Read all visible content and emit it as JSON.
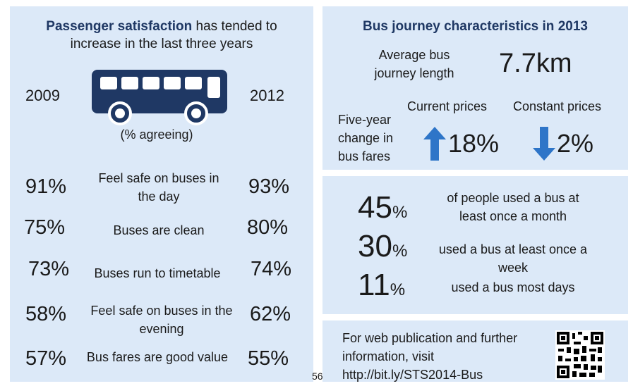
{
  "left": {
    "title_bold": "Passenger satisfaction",
    "title_rest": " has tended to",
    "title_line2": "increase in the last three years",
    "year_start": "2009",
    "year_end": "2012",
    "agreeing_note": "(% agreeing)",
    "rows": [
      {
        "label_line1": "Feel safe on buses in",
        "label_line2": "the day",
        "v2009": "91%",
        "v2012": "93%"
      },
      {
        "label_line1": "Buses are clean",
        "label_line2": "",
        "v2009": "75%",
        "v2012": "80%"
      },
      {
        "label_line1": "Buses run to timetable",
        "label_line2": "",
        "v2009": "73%",
        "v2012": "74%"
      },
      {
        "label_line1": "Feel safe on buses in the",
        "label_line2": "evening",
        "v2009": "58%",
        "v2012": "62%"
      },
      {
        "label_line1": "Bus fares are good value",
        "label_line2": "",
        "v2009": "57%",
        "v2012": "55%"
      }
    ]
  },
  "journey": {
    "title": "Bus  journey characteristics in 2013",
    "avg_label_line1": "Average bus",
    "avg_label_line2": "journey length",
    "avg_value": "7.7km",
    "fare_label_line1": "Five-year",
    "fare_label_line2": "change in",
    "fare_label_line3": "bus fares",
    "current_label": "Current prices",
    "current_value": "18%",
    "constant_label": "Constant prices",
    "constant_value": "2%",
    "up_color": "#2e75c8",
    "down_color": "#2e75c8"
  },
  "usage": {
    "items": [
      {
        "num": "45",
        "pc": "%",
        "line1": "of people used a bus at",
        "line2": "least once a month"
      },
      {
        "num": "30",
        "pc": "%",
        "line1": "used a bus at least once a",
        "line2": "week"
      },
      {
        "num": "11",
        "pc": "%",
        "line1": "used a bus most days",
        "line2": ""
      }
    ]
  },
  "web": {
    "line1": "For web publication and further",
    "line2": "information, visit",
    "line3": "http://bit.ly/STS2014-Bus",
    "qr_icon": "qr-code-icon"
  },
  "page_number": "56",
  "bus_color": "#1f3864"
}
